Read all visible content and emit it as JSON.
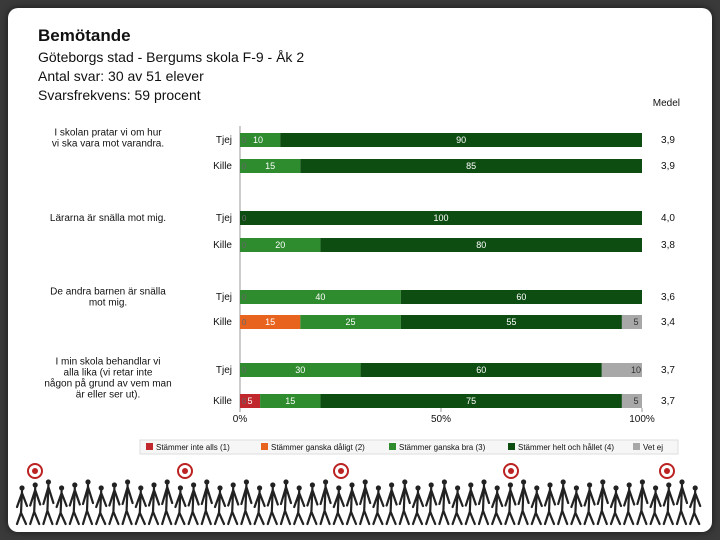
{
  "header": {
    "title": "Bemötande",
    "line1": "Göteborgs stad - Bergums skola F-9 - Åk 2",
    "line2": "Antal svar: 30 av 51 elever",
    "line3": "Svarsfrekvens: 59 procent"
  },
  "chart_data": {
    "type": "bar",
    "stacked": true,
    "orientation": "horizontal",
    "mean_header": "Medel",
    "xlim": [
      0,
      100
    ],
    "xticks": [
      "0%",
      "50%",
      "100%"
    ],
    "colors": {
      "s1": "#c0282d",
      "s2": "#e8641e",
      "s3": "#2e8b2e",
      "s4": "#0e4d12",
      "s5": "#a8a8a8"
    },
    "legend": [
      "Stämmer inte alls (1)",
      "Stämmer ganska dåligt (2)",
      "Stämmer ganska bra (3)",
      "Stämmer helt och hållet (4)",
      "Vet ej"
    ],
    "questions": [
      {
        "label": "I skolan pratar vi om hur vi ska vara mot varandra.",
        "rows": [
          {
            "group": "Tjej",
            "values": [
              0,
              0,
              10,
              90,
              0
            ],
            "mean": "3,9"
          },
          {
            "group": "Kille",
            "values": [
              0,
              0,
              15,
              85,
              0
            ],
            "mean": "3,9"
          }
        ]
      },
      {
        "label": "Lärarna är snälla mot mig.",
        "rows": [
          {
            "group": "Tjej",
            "values": [
              0,
              0,
              0,
              100,
              0
            ],
            "mean": "4,0"
          },
          {
            "group": "Kille",
            "values": [
              0,
              0,
              20,
              80,
              0
            ],
            "mean": "3,8"
          }
        ]
      },
      {
        "label": "De andra barnen är snälla mot mig.",
        "rows": [
          {
            "group": "Tjej",
            "values": [
              0,
              0,
              40,
              60,
              0
            ],
            "mean": "3,6"
          },
          {
            "group": "Kille",
            "values": [
              0,
              15,
              25,
              55,
              5
            ],
            "mean": "3,4"
          }
        ]
      },
      {
        "label": "I min skola behandlar vi alla lika (vi retar inte någon på grund av vem man är eller ser ut).",
        "rows": [
          {
            "group": "Tjej",
            "values": [
              0,
              0,
              30,
              60,
              10
            ],
            "mean": "3,7"
          },
          {
            "group": "Kille",
            "values": [
              5,
              0,
              15,
              75,
              5
            ],
            "mean": "3,7"
          }
        ]
      }
    ]
  }
}
